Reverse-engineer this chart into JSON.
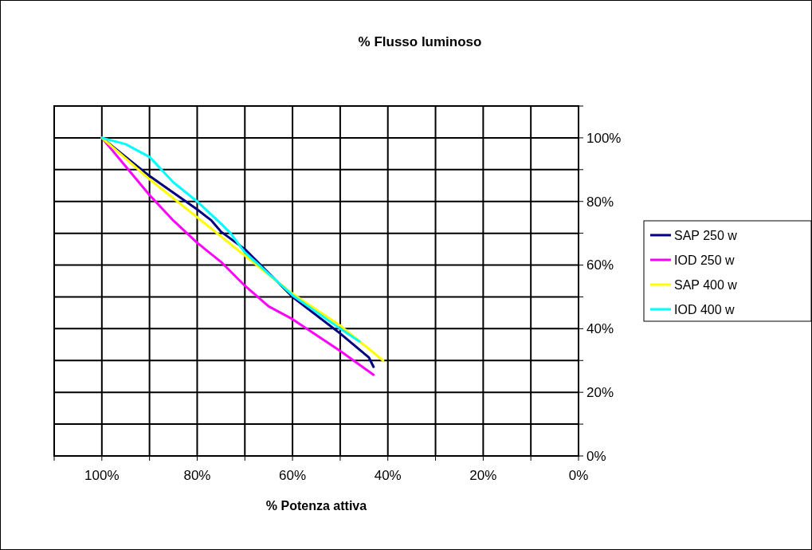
{
  "chart_data": {
    "type": "line",
    "title": "% Flusso luminoso",
    "xlabel": "% Potenza attiva",
    "xlim": [
      110,
      0
    ],
    "ylim": [
      0,
      110
    ],
    "xticks": [
      {
        "value": 110,
        "label": null
      },
      {
        "value": 100,
        "label": "100%"
      },
      {
        "value": 90,
        "label": null
      },
      {
        "value": 80,
        "label": "80%"
      },
      {
        "value": 70,
        "label": null
      },
      {
        "value": 60,
        "label": "60%"
      },
      {
        "value": 50,
        "label": null
      },
      {
        "value": 40,
        "label": "40%"
      },
      {
        "value": 30,
        "label": null
      },
      {
        "value": 20,
        "label": "20%"
      },
      {
        "value": 10,
        "label": null
      },
      {
        "value": 0,
        "label": "0%"
      }
    ],
    "yticks": [
      {
        "value": 0,
        "label": "0%"
      },
      {
        "value": 10,
        "label": null
      },
      {
        "value": 20,
        "label": "20%"
      },
      {
        "value": 30,
        "label": null
      },
      {
        "value": 40,
        "label": "40%"
      },
      {
        "value": 50,
        "label": null
      },
      {
        "value": 60,
        "label": "60%"
      },
      {
        "value": 70,
        "label": null
      },
      {
        "value": 80,
        "label": "80%"
      },
      {
        "value": 90,
        "label": null
      },
      {
        "value": 100,
        "label": "100%"
      },
      {
        "value": 110,
        "label": null
      }
    ],
    "grid": true,
    "legend": "right",
    "marker": "none",
    "line_style": "solid",
    "series": [
      {
        "name": "SAP 250 w",
        "color": "#000080",
        "x": [
          100,
          90,
          80,
          77,
          75,
          70,
          60,
          50,
          44,
          43
        ],
        "values": [
          100,
          88,
          77.5,
          74,
          70.5,
          65,
          50,
          38.5,
          31,
          28
        ]
      },
      {
        "name": "IOD 250 w",
        "color": "#ff00ff",
        "x": [
          100,
          95,
          90,
          85,
          80,
          75,
          70,
          65,
          60,
          50,
          43
        ],
        "values": [
          100,
          91,
          82,
          74,
          67,
          61,
          53.5,
          47,
          43,
          33,
          25.5
        ]
      },
      {
        "name": "SAP 400 w",
        "color": "#ffff00",
        "x": [
          100,
          90,
          80,
          70,
          60,
          50,
          41
        ],
        "values": [
          100,
          87,
          75,
          63,
          51,
          41,
          30
        ]
      },
      {
        "name": "IOD 400 w",
        "color": "#00ffff",
        "x": [
          100,
          95,
          90,
          85,
          80,
          75,
          73,
          70,
          60,
          50,
          46
        ],
        "values": [
          100,
          98,
          94,
          86,
          80,
          73,
          70,
          64,
          50.5,
          40,
          36
        ]
      }
    ]
  }
}
